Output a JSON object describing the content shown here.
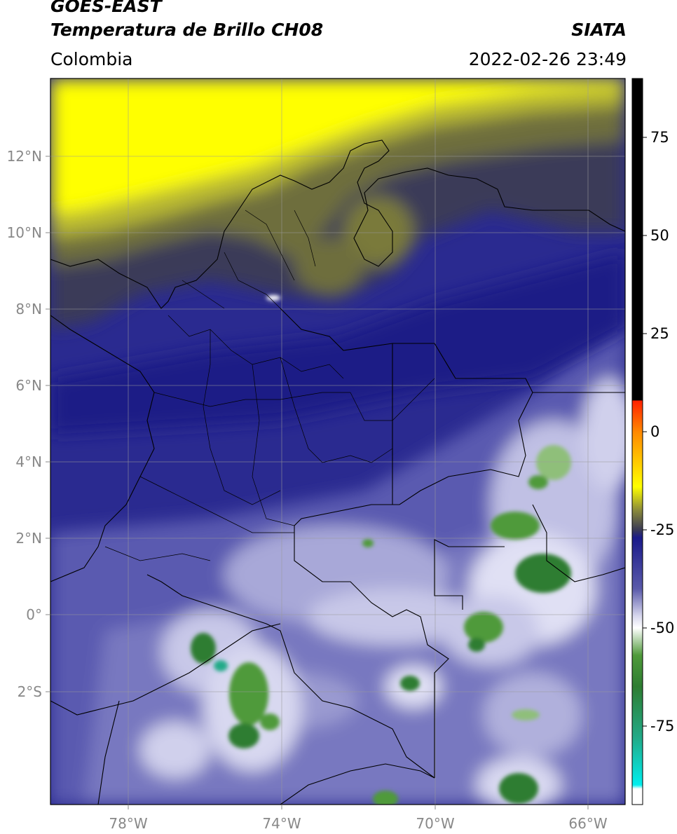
{
  "header": {
    "satellite": "GOES-EAST",
    "product": "Temperatura de Brillo CH08",
    "region": "Colombia",
    "agency": "SIATA",
    "timestamp": "2022-02-26 23:49"
  },
  "map": {
    "lon_ticks": [
      "78°W",
      "74°W",
      "70°W",
      "66°W"
    ],
    "lat_ticks": [
      "12°N",
      "10°N",
      "8°N",
      "6°N",
      "4°N",
      "2°N",
      "0°",
      "2°S"
    ]
  },
  "colorbar": {
    "tick_labels": [
      "75",
      "50",
      "25",
      "0",
      "-25",
      "-50",
      "-75"
    ],
    "range": [
      -95,
      90
    ],
    "stops": [
      {
        "v": 90,
        "c": "#000000"
      },
      {
        "v": 8,
        "c": "#000000"
      },
      {
        "v": 7.9,
        "c": "#ff2200"
      },
      {
        "v": 0,
        "c": "#ff8800"
      },
      {
        "v": -8,
        "c": "#ffcc00"
      },
      {
        "v": -14,
        "c": "#ffff00"
      },
      {
        "v": -20,
        "c": "#8a8a3a"
      },
      {
        "v": -25,
        "c": "#3a3a55"
      },
      {
        "v": -27,
        "c": "#1a1a8a"
      },
      {
        "v": -40,
        "c": "#5a5aaa"
      },
      {
        "v": -47,
        "c": "#d8d8ee"
      },
      {
        "v": -50,
        "c": "#ffffff"
      },
      {
        "v": -57,
        "c": "#4f9a3a"
      },
      {
        "v": -65,
        "c": "#2e7d32"
      },
      {
        "v": -78,
        "c": "#22aa88"
      },
      {
        "v": -90,
        "c": "#00eeee"
      },
      {
        "v": -91,
        "c": "#ffffff"
      },
      {
        "v": -95,
        "c": "#ffffff"
      }
    ]
  }
}
